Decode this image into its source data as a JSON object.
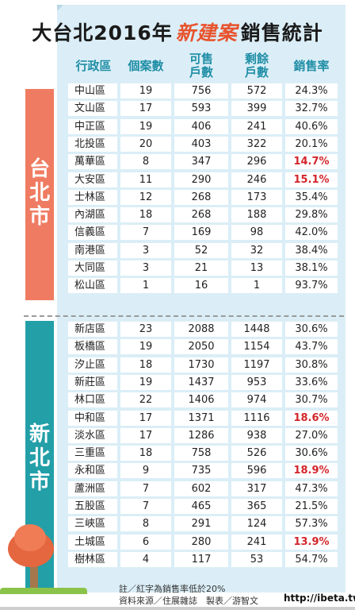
{
  "title": {
    "prefix": "大台北2016年",
    "highlight": "新建案",
    "suffix": "銷售統計"
  },
  "headers": {
    "district": "行政區",
    "cases": "個案數",
    "available": "可售\n戶數",
    "remaining": "剩餘\n戶數",
    "rate": "銷售率"
  },
  "regions": {
    "taipei": "台北市",
    "newtaipei": "新北市"
  },
  "taipei_rows": [
    {
      "district": "中山區",
      "cases": "19",
      "available": "756",
      "remaining": "572",
      "rate": "24.3%",
      "red": false
    },
    {
      "district": "文山區",
      "cases": "17",
      "available": "593",
      "remaining": "399",
      "rate": "32.7%",
      "red": false
    },
    {
      "district": "中正區",
      "cases": "19",
      "available": "406",
      "remaining": "241",
      "rate": "40.6%",
      "red": false
    },
    {
      "district": "北投區",
      "cases": "20",
      "available": "403",
      "remaining": "322",
      "rate": "20.1%",
      "red": false
    },
    {
      "district": "萬華區",
      "cases": "8",
      "available": "347",
      "remaining": "296",
      "rate": "14.7%",
      "red": true
    },
    {
      "district": "大安區",
      "cases": "11",
      "available": "290",
      "remaining": "246",
      "rate": "15.1%",
      "red": true
    },
    {
      "district": "士林區",
      "cases": "12",
      "available": "268",
      "remaining": "173",
      "rate": "35.4%",
      "red": false
    },
    {
      "district": "內湖區",
      "cases": "18",
      "available": "268",
      "remaining": "188",
      "rate": "29.8%",
      "red": false
    },
    {
      "district": "信義區",
      "cases": "7",
      "available": "169",
      "remaining": "98",
      "rate": "42.0%",
      "red": false
    },
    {
      "district": "南港區",
      "cases": "3",
      "available": "52",
      "remaining": "32",
      "rate": "38.4%",
      "red": false
    },
    {
      "district": "大同區",
      "cases": "3",
      "available": "21",
      "remaining": "13",
      "rate": "38.1%",
      "red": false
    },
    {
      "district": "松山區",
      "cases": "1",
      "available": "16",
      "remaining": "1",
      "rate": "93.7%",
      "red": false
    }
  ],
  "newtaipei_rows": [
    {
      "district": "新店區",
      "cases": "23",
      "available": "2088",
      "remaining": "1448",
      "rate": "30.6%",
      "red": false
    },
    {
      "district": "板橋區",
      "cases": "19",
      "available": "2050",
      "remaining": "1154",
      "rate": "43.7%",
      "red": false
    },
    {
      "district": "汐止區",
      "cases": "18",
      "available": "1730",
      "remaining": "1197",
      "rate": "30.8%",
      "red": false
    },
    {
      "district": "新莊區",
      "cases": "19",
      "available": "1437",
      "remaining": "953",
      "rate": "33.6%",
      "red": false
    },
    {
      "district": "林口區",
      "cases": "22",
      "available": "1406",
      "remaining": "974",
      "rate": "30.7%",
      "red": false
    },
    {
      "district": "中和區",
      "cases": "17",
      "available": "1371",
      "remaining": "1116",
      "rate": "18.6%",
      "red": true
    },
    {
      "district": "淡水區",
      "cases": "17",
      "available": "1286",
      "remaining": "938",
      "rate": "27.0%",
      "red": false
    },
    {
      "district": "三重區",
      "cases": "18",
      "available": "758",
      "remaining": "526",
      "rate": "30.6%",
      "red": false
    },
    {
      "district": "永和區",
      "cases": "9",
      "available": "735",
      "remaining": "596",
      "rate": "18.9%",
      "red": true
    },
    {
      "district": "蘆洲區",
      "cases": "7",
      "available": "602",
      "remaining": "317",
      "rate": "47.3%",
      "red": false
    },
    {
      "district": "五股區",
      "cases": "7",
      "available": "465",
      "remaining": "365",
      "rate": "21.5%",
      "red": false
    },
    {
      "district": "三峽區",
      "cases": "8",
      "available": "291",
      "remaining": "124",
      "rate": "57.3%",
      "red": false
    },
    {
      "district": "土城區",
      "cases": "6",
      "available": "280",
      "remaining": "241",
      "rate": "13.9%",
      "red": true
    },
    {
      "district": "樹林區",
      "cases": "4",
      "available": "117",
      "remaining": "53",
      "rate": "54.7%",
      "red": false
    }
  ],
  "notes": {
    "note": "註／紅字為銷售率低於20%",
    "source": "資料來源／住展雜誌　製表／游智文"
  },
  "watermark": "http://ibeta.tw",
  "colors": {
    "taipei": "#ef7c62",
    "newtaipei": "#239fa8",
    "header": "#1f8ea6",
    "low_rate": "#d3252b",
    "highlight": "#e8532d"
  }
}
